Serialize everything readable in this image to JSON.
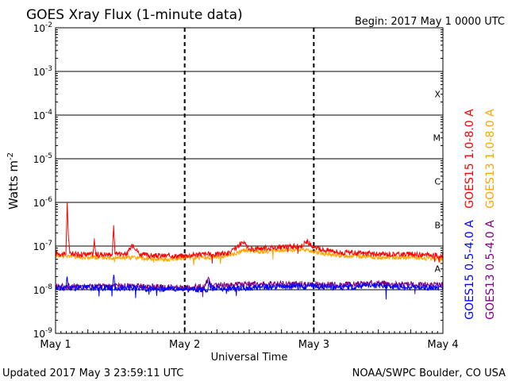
{
  "chart_data": {
    "type": "line",
    "title": "GOES Xray Flux (1-minute data)",
    "begin_label": "Begin:  2017 May 1 0000 UTC",
    "xlabel": "Universal Time",
    "ylabel_base": "Watts m",
    "ylabel_exp": "-2",
    "y_scale": "log",
    "ylim": [
      1e-09,
      0.01
    ],
    "xlim_days": [
      0,
      3
    ],
    "y_ticks": [
      {
        "exp": "-2",
        "value": 0.01
      },
      {
        "exp": "-3",
        "value": 0.001
      },
      {
        "exp": "-4",
        "value": 0.0001
      },
      {
        "exp": "-5",
        "value": 1e-05
      },
      {
        "exp": "-6",
        "value": 1e-06
      },
      {
        "exp": "-7",
        "value": 1e-07
      },
      {
        "exp": "-8",
        "value": 1e-08
      },
      {
        "exp": "-9",
        "value": 1e-09
      }
    ],
    "x_ticks": [
      {
        "label": "May 1",
        "day": 0
      },
      {
        "label": "May 2",
        "day": 1
      },
      {
        "label": "May 3",
        "day": 2
      },
      {
        "label": "May 4",
        "day": 3
      }
    ],
    "flare_classes": [
      {
        "label": "X",
        "value": 0.0001
      },
      {
        "label": "M",
        "value": 1e-05
      },
      {
        "label": "C",
        "value": 1e-06
      },
      {
        "label": "B",
        "value": 1e-07
      },
      {
        "label": "A",
        "value": 1e-08
      }
    ],
    "grid": true,
    "legend_placement": "right",
    "series": [
      {
        "name": "GOES15 1.0-8.0 A",
        "color": "#ff0000",
        "x": [
          0,
          0.05,
          0.08,
          0.09,
          0.1,
          0.11,
          0.15,
          0.25,
          0.29,
          0.3,
          0.31,
          0.4,
          0.44,
          0.45,
          0.46,
          0.55,
          0.6,
          0.65,
          0.75,
          0.9,
          1.0,
          1.1,
          1.25,
          1.35,
          1.4,
          1.45,
          1.5,
          1.6,
          1.75,
          1.9,
          1.95,
          2.0,
          2.1,
          2.15,
          2.2,
          2.3,
          2.5,
          2.75,
          3.0
        ],
        "y": [
          7e-08,
          6.5e-08,
          6.5e-08,
          1e-06,
          1.5e-07,
          7e-08,
          6.5e-08,
          6.5e-08,
          6.5e-08,
          1.4e-07,
          6.5e-08,
          6.5e-08,
          6.5e-08,
          3e-07,
          7e-08,
          6.5e-08,
          1.1e-07,
          6.5e-08,
          6e-08,
          6e-08,
          6e-08,
          6.5e-08,
          6.5e-08,
          7e-08,
          9e-08,
          1.2e-07,
          8.5e-08,
          9e-08,
          9.5e-08,
          1e-07,
          1.3e-07,
          9e-08,
          8e-08,
          8e-08,
          7e-08,
          7e-08,
          6.5e-08,
          6.5e-08,
          6e-08
        ]
      },
      {
        "name": "GOES13 1.0-8.0 A",
        "color": "#ffa500",
        "x": [
          0,
          0.1,
          0.2,
          0.3,
          0.45,
          0.6,
          0.75,
          0.9,
          1.0,
          1.2,
          1.35,
          1.45,
          1.6,
          1.75,
          1.9,
          2.0,
          2.1,
          2.2,
          2.3,
          2.5,
          2.75,
          3.0
        ],
        "y": [
          6e-08,
          6e-08,
          5.5e-08,
          5.5e-08,
          5.5e-08,
          5.5e-08,
          5e-08,
          5e-08,
          5.5e-08,
          5.5e-08,
          6e-08,
          8e-08,
          7.5e-08,
          8e-08,
          8.5e-08,
          7.5e-08,
          6.5e-08,
          6e-08,
          6e-08,
          5.5e-08,
          5.5e-08,
          5e-08
        ]
      },
      {
        "name": "GOES15 0.5-4.0 A",
        "color": "#0000ff",
        "x": [
          0,
          0.05,
          0.08,
          0.09,
          0.1,
          0.15,
          0.3,
          0.44,
          0.45,
          0.46,
          0.6,
          0.75,
          0.9,
          1.1,
          1.18,
          1.19,
          1.2,
          1.35,
          1.5,
          1.7,
          1.9,
          2.0,
          2.2,
          2.3,
          2.45,
          2.5,
          2.75,
          3.0
        ],
        "y": [
          1.1e-08,
          1.1e-08,
          1.1e-08,
          2e-08,
          1.1e-08,
          1.1e-08,
          1.1e-08,
          1.1e-08,
          2.2e-08,
          1.1e-08,
          1.1e-08,
          1.05e-08,
          1.05e-08,
          1e-08,
          1e-08,
          1.7e-08,
          1.1e-08,
          1.05e-08,
          1.1e-08,
          1.15e-08,
          1.2e-08,
          1.2e-08,
          1.15e-08,
          1.15e-08,
          1.3e-08,
          1.2e-08,
          1.15e-08,
          1.1e-08
        ]
      },
      {
        "name": "GOES13 0.5-4.0 A",
        "color": "#800080",
        "x": [
          0,
          0.2,
          0.4,
          0.6,
          0.8,
          1.0,
          1.15,
          1.19,
          1.2,
          1.4,
          1.6,
          1.8,
          2.0,
          2.2,
          2.4,
          2.5,
          2.6,
          2.8,
          3.0
        ],
        "y": [
          1.2e-08,
          1.2e-08,
          1.2e-08,
          1.2e-08,
          1.15e-08,
          1.1e-08,
          1.2e-08,
          1.8e-08,
          1.25e-08,
          1.3e-08,
          1.35e-08,
          1.35e-08,
          1.35e-08,
          1.3e-08,
          1.35e-08,
          1.45e-08,
          1.35e-08,
          1.3e-08,
          1.25e-08
        ]
      }
    ]
  },
  "footer": {
    "updated": "Updated 2017 May  3 23:59:11 UTC",
    "credit": "NOAA/SWPC Boulder, CO USA"
  }
}
